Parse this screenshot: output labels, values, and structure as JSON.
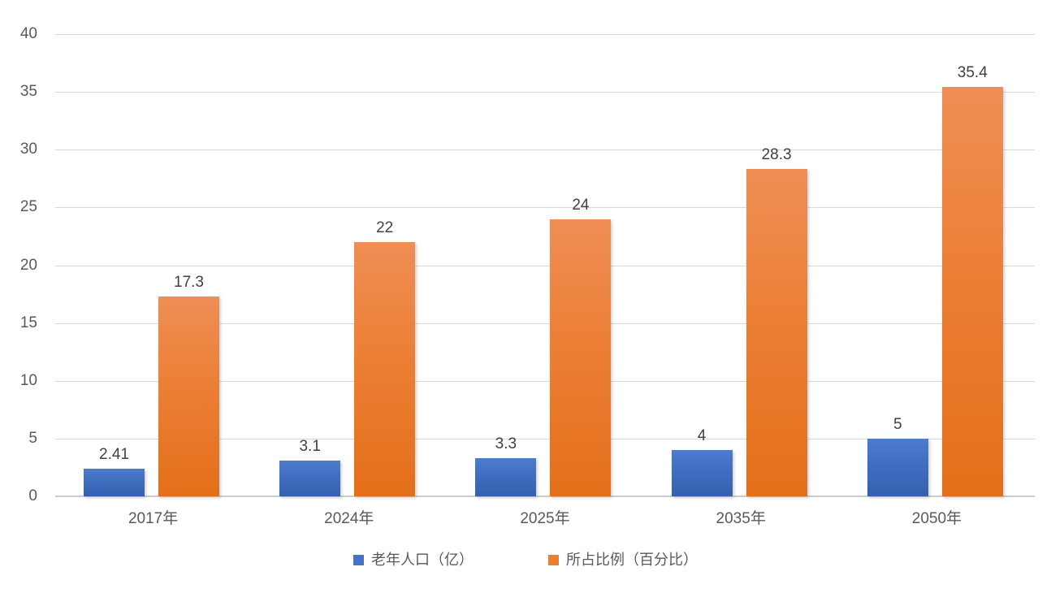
{
  "chart_data": {
    "type": "bar",
    "title": "",
    "xlabel": "",
    "ylabel": "",
    "categories": [
      "2017年",
      "2024年",
      "2025年",
      "2035年",
      "2050年"
    ],
    "series": [
      {
        "name": "老年人口（亿）",
        "color": "#4472C4",
        "values": [
          2.41,
          3.1,
          3.3,
          4,
          5
        ]
      },
      {
        "name": "所占比例（百分比）",
        "color": "#ED7D31",
        "values": [
          17.3,
          22,
          24,
          28.3,
          35.4
        ]
      }
    ],
    "ylim": [
      0,
      40
    ],
    "ytick_step": 5,
    "yticks": [
      0,
      5,
      10,
      15,
      20,
      25,
      30,
      35,
      40
    ],
    "grid": true,
    "data_labels": true,
    "legend_position": "bottom",
    "gridline_color": "#d9d9d9",
    "axis_text_color": "#595959",
    "data_label_color": "#404040"
  }
}
